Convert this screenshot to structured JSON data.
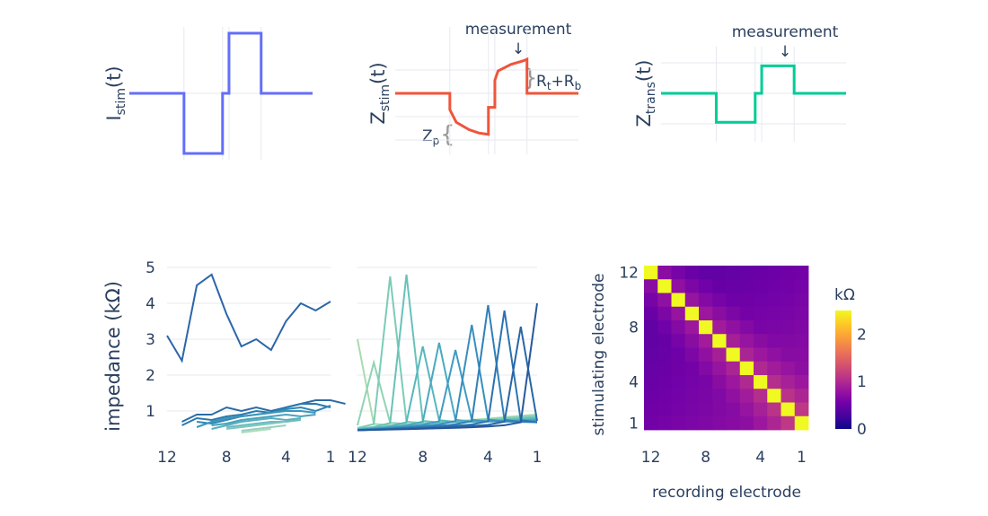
{
  "chart_data": [
    {
      "id": "istim",
      "type": "line",
      "ylabel_main": "I",
      "ylabel_sub": "stim",
      "ylabel_tail": "(t)",
      "color": "#636efa",
      "x": [
        0,
        1.7,
        1.7,
        2.9,
        2.9,
        3.1,
        3.1,
        4.1,
        4.1,
        5.7
      ],
      "y": [
        0,
        0,
        -1,
        -1,
        0,
        0,
        1,
        1,
        0,
        0
      ]
    },
    {
      "id": "zstim",
      "type": "line",
      "ylabel_main": "Z",
      "ylabel_sub": "stim",
      "ylabel_tail": "(t)",
      "color": "#ef553b",
      "annotation": "measurement",
      "annotation_arrow": "↓",
      "label_rt": "R",
      "label_rt_sub": "t",
      "label_plus": "+R",
      "label_rb_sub": "b",
      "label_zp": "Z",
      "label_zp_sub": "p",
      "x": [
        0,
        1.7,
        1.7,
        1.9,
        2.3,
        2.6,
        2.9,
        2.9,
        3.1,
        3.1,
        3.2,
        3.6,
        4.0,
        4.1,
        4.1,
        5.7
      ],
      "y": [
        0,
        0,
        -0.35,
        -0.62,
        -0.78,
        -0.85,
        -0.88,
        -0.3,
        -0.3,
        0.28,
        0.48,
        0.62,
        0.7,
        0.73,
        0,
        0
      ]
    },
    {
      "id": "ztrans",
      "type": "line",
      "ylabel_main": "Z",
      "ylabel_sub": "trans",
      "ylabel_tail": "(t)",
      "color": "#00cc96",
      "annotation": "measurement",
      "annotation_arrow": "↓",
      "x": [
        0,
        1.7,
        1.7,
        2.9,
        2.9,
        3.1,
        3.1,
        4.1,
        4.1,
        5.7
      ],
      "y": [
        0,
        0,
        -0.95,
        -0.95,
        0,
        0,
        0.9,
        0.9,
        0,
        0
      ]
    },
    {
      "id": "impedance-a",
      "type": "line",
      "ylabel": "impedance (kΩ)",
      "yticks": [
        "1",
        "2",
        "3",
        "4",
        "5"
      ],
      "xticks": [
        "12",
        "8",
        "4",
        "1"
      ],
      "highlight": {
        "color": "#2c66a8",
        "values": [
          3.1,
          2.4,
          4.5,
          4.8,
          3.7,
          2.8,
          3.0,
          2.7,
          3.5,
          4.0,
          3.8,
          4.05
        ]
      },
      "lower": [
        {
          "color": "#2c6ca4",
          "from": 11,
          "values": [
            0.7,
            0.9,
            0.9,
            1.1,
            1.0,
            1.1,
            1.0,
            1.1,
            1.2,
            1.3,
            1.3,
            1.2
          ]
        },
        {
          "color": "#2a79ae",
          "from": 11,
          "values": [
            0.6,
            0.8,
            0.75,
            0.85,
            0.9,
            1.0,
            0.95,
            1.1,
            1.2,
            1.2,
            1.1
          ]
        },
        {
          "color": "#3187b6",
          "from": 10,
          "values": [
            0.7,
            0.65,
            0.75,
            0.85,
            0.9,
            0.95,
            1.05,
            1.1,
            1.0,
            1.15
          ]
        },
        {
          "color": "#3b95bb",
          "from": 10,
          "values": [
            0.55,
            0.7,
            0.8,
            0.85,
            0.9,
            0.95,
            1.0,
            1.0,
            0.95
          ]
        },
        {
          "color": "#48a2bd",
          "from": 9,
          "values": [
            0.6,
            0.65,
            0.75,
            0.8,
            0.85,
            0.9,
            0.85,
            0.9
          ]
        },
        {
          "color": "#57aebf",
          "from": 9,
          "values": [
            0.5,
            0.6,
            0.7,
            0.75,
            0.8,
            0.75,
            0.8
          ]
        },
        {
          "color": "#6bbbc0",
          "from": 8,
          "values": [
            0.55,
            0.6,
            0.65,
            0.7,
            0.7,
            0.75
          ]
        },
        {
          "color": "#80c6bf",
          "from": 8,
          "values": [
            0.5,
            0.55,
            0.6,
            0.65,
            0.7
          ]
        },
        {
          "color": "#97d0bd",
          "from": 7,
          "values": [
            0.45,
            0.5,
            0.55,
            0.6
          ]
        },
        {
          "color": "#afdbbc",
          "from": 7,
          "values": [
            0.4,
            0.45,
            0.5
          ]
        }
      ]
    },
    {
      "id": "impedance-b",
      "type": "line",
      "xticks": [
        "12",
        "8",
        "4",
        "1"
      ],
      "series": [
        {
          "color": "#a8dbb0",
          "peak": 12,
          "height": 3.0
        },
        {
          "color": "#90d3b3",
          "peak": 11,
          "height": 2.35
        },
        {
          "color": "#7bccb6",
          "peak": 10,
          "height": 4.75
        },
        {
          "color": "#68c2ba",
          "peak": 9,
          "height": 4.8
        },
        {
          "color": "#58b6be",
          "peak": 8,
          "height": 2.8
        },
        {
          "color": "#4aa9c0",
          "peak": 7,
          "height": 2.9
        },
        {
          "color": "#409bc1",
          "peak": 6,
          "height": 2.7
        },
        {
          "color": "#388ebe",
          "peak": 5,
          "height": 3.4
        },
        {
          "color": "#3080b8",
          "peak": 4,
          "height": 3.95
        },
        {
          "color": "#2b72b0",
          "peak": 3,
          "height": 3.8
        },
        {
          "color": "#2a65a6",
          "peak": 2,
          "height": 3.35
        },
        {
          "color": "#29589b",
          "peak": 1,
          "height": 4.0
        }
      ]
    },
    {
      "id": "heatmap",
      "type": "heatmap",
      "xlabel": "recording electrode",
      "ylabel": "stimulating electrode",
      "xticks": [
        "12",
        "8",
        "4",
        "1"
      ],
      "yticks": [
        "12",
        "8",
        "4",
        "1"
      ],
      "colorbar_title": "kΩ",
      "colorbar_ticks": [
        "0",
        "1",
        "2"
      ],
      "zmin": 0,
      "zmax": 2.5,
      "colorscale": [
        "#0d0887",
        "#46039f",
        "#7201a8",
        "#9c179e",
        "#bd3786",
        "#d8576b",
        "#ed7953",
        "#fb9f3a",
        "#fdca26",
        "#f0f921"
      ],
      "diagonal": 2.5,
      "base": 0.55,
      "decay": 0.18
    }
  ]
}
